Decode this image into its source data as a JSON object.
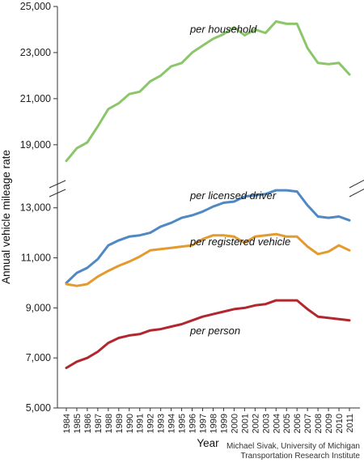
{
  "chart_data": {
    "type": "line",
    "xlabel": "Year",
    "ylabel": "Annual vehicle mileage rate",
    "credit": {
      "line1": "Michael Sivak, University of Michigan",
      "line2": "Transportation Research Institute"
    },
    "axis_break": {
      "lower_max": 13800,
      "upper_min": 17800
    },
    "grid": false,
    "x": [
      1984,
      1985,
      1986,
      1987,
      1988,
      1989,
      1990,
      1991,
      1992,
      1993,
      1994,
      1995,
      1996,
      1997,
      1998,
      1999,
      2000,
      2001,
      2002,
      2003,
      2004,
      2005,
      2006,
      2007,
      2008,
      2009,
      2010,
      2011
    ],
    "x_tick_labels": [
      "1984",
      "1985",
      "1986",
      "1987",
      "1988",
      "1989",
      "1990",
      "1991",
      "1992",
      "1993",
      "1994",
      "1995",
      "1996",
      "1997",
      "1998",
      "1999",
      "2000",
      "2001",
      "2002",
      "2003",
      "2004",
      "2005",
      "2006",
      "2007",
      "2008",
      "2009",
      "2010",
      "2011"
    ],
    "y_tick_labels": [
      "5,000",
      "7,000",
      "9,000",
      "11,000",
      "13,000",
      "19,000",
      "21,000",
      "23,000",
      "25,000"
    ],
    "y_tick_values": [
      5000,
      7000,
      9000,
      11000,
      13000,
      19000,
      21000,
      23000,
      25000
    ],
    "series": [
      {
        "name": "per household",
        "color": "#8cc66a",
        "values": [
          18300,
          18850,
          19100,
          19800,
          20550,
          20800,
          21200,
          21300,
          21750,
          22000,
          22400,
          22550,
          23000,
          23300,
          23600,
          23800,
          24100,
          23750,
          24000,
          23850,
          24350,
          24250,
          24250,
          23200,
          22550,
          22500,
          22550,
          22050
        ]
      },
      {
        "name": "per licensed driver",
        "color": "#4f88c2",
        "values": [
          10000,
          10400,
          10600,
          10950,
          11500,
          11700,
          11850,
          11900,
          12000,
          12250,
          12400,
          12600,
          12700,
          12850,
          13050,
          13200,
          13250,
          13450,
          13500,
          13550,
          13700,
          13700,
          13650,
          13100,
          12650,
          12600,
          12650,
          12500
        ]
      },
      {
        "name": "per registered vehicle",
        "color": "#e39a2e",
        "values": [
          9950,
          9880,
          9950,
          10250,
          10480,
          10680,
          10850,
          11050,
          11300,
          11350,
          11400,
          11450,
          11500,
          11750,
          11900,
          11900,
          11850,
          11600,
          11850,
          11900,
          11950,
          11850,
          11850,
          11450,
          11150,
          11250,
          11500,
          11300
        ]
      },
      {
        "name": "per person",
        "color": "#b0272d",
        "values": [
          6600,
          6850,
          7000,
          7250,
          7600,
          7800,
          7900,
          7950,
          8100,
          8150,
          8250,
          8350,
          8500,
          8650,
          8750,
          8850,
          8950,
          9000,
          9100,
          9150,
          9300,
          9300,
          9300,
          8950,
          8650,
          8600,
          8550,
          8500
        ]
      }
    ]
  }
}
